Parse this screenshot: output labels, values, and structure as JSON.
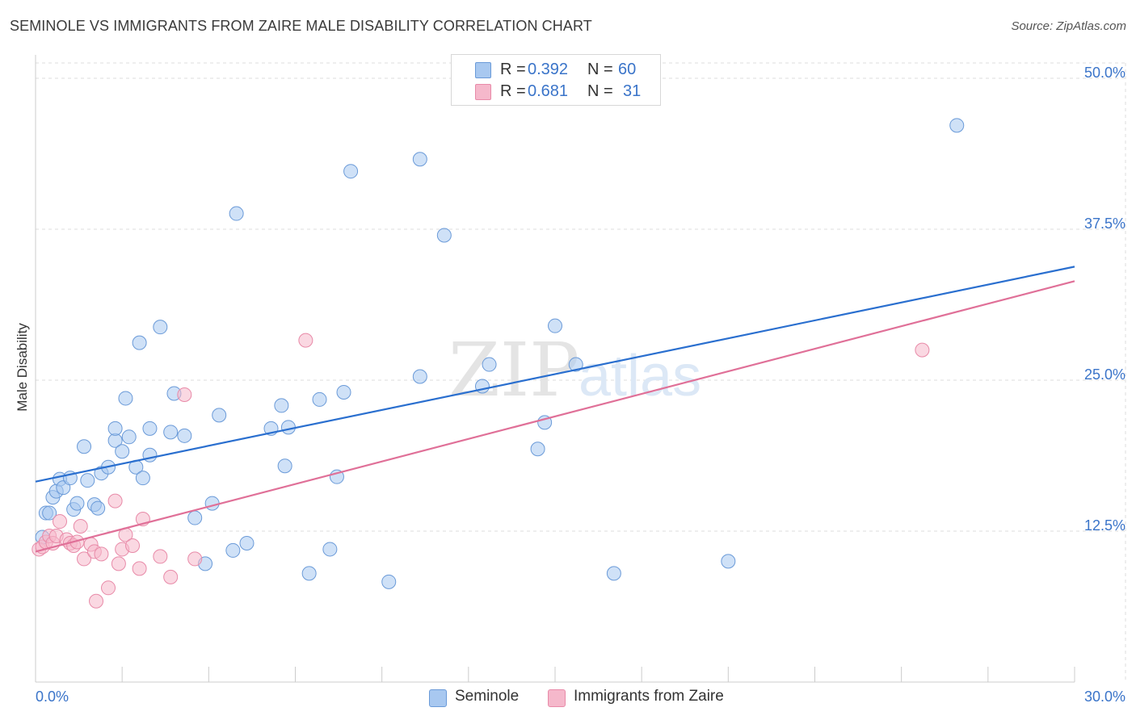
{
  "title": "SEMINOLE VS IMMIGRANTS FROM ZAIRE MALE DISABILITY CORRELATION CHART",
  "source": "Source: ZipAtlas.com",
  "watermark": {
    "zip": "ZIP",
    "atlas": "atlas"
  },
  "legend_top": {
    "rows": [
      {
        "r_label": "R =",
        "r_value": "0.392",
        "n_label": "N =",
        "n_value": "60"
      },
      {
        "r_label": "R =",
        "r_value": "0.681",
        "n_label": "N =",
        "n_value": "31"
      }
    ]
  },
  "colors": {
    "seminole_fill": "#a8c8f0",
    "seminole_stroke": "#6a9ad8",
    "seminole_line": "#2a6fcf",
    "zaire_fill": "#f5b8cb",
    "zaire_stroke": "#e88aa8",
    "zaire_line": "#e07098",
    "axis_label": "#3a74c9",
    "grid": "#dddddd"
  },
  "chart_data": {
    "type": "scatter",
    "title": "SEMINOLE VS IMMIGRANTS FROM ZAIRE MALE DISABILITY CORRELATION CHART",
    "xlabel": "",
    "ylabel": "Male Disability",
    "xlim": [
      0,
      30
    ],
    "ylim": [
      0,
      52
    ],
    "x_tick_labels": [
      {
        "value": 0,
        "label": "0.0%"
      },
      {
        "value": 30,
        "label": "30.0%"
      }
    ],
    "y_tick_labels": [
      {
        "value": 12.5,
        "label": "12.5%"
      },
      {
        "value": 25,
        "label": "25.0%"
      },
      {
        "value": 37.5,
        "label": "37.5%"
      },
      {
        "value": 50,
        "label": "50.0%"
      }
    ],
    "series": [
      {
        "name": "Seminole",
        "R": 0.392,
        "N": 60,
        "trend": {
          "x": [
            0,
            30
          ],
          "y": [
            16.6,
            34.4
          ]
        },
        "points": [
          [
            0.2,
            12.0
          ],
          [
            0.3,
            14.0
          ],
          [
            0.4,
            14.0
          ],
          [
            0.5,
            15.3
          ],
          [
            0.6,
            15.8
          ],
          [
            0.7,
            16.8
          ],
          [
            0.8,
            16.1
          ],
          [
            1.0,
            16.9
          ],
          [
            1.1,
            14.3
          ],
          [
            1.2,
            14.8
          ],
          [
            1.4,
            19.5
          ],
          [
            1.5,
            16.7
          ],
          [
            1.7,
            14.7
          ],
          [
            1.8,
            14.4
          ],
          [
            1.9,
            17.3
          ],
          [
            2.1,
            17.8
          ],
          [
            2.3,
            20.0
          ],
          [
            2.3,
            21.0
          ],
          [
            2.5,
            19.1
          ],
          [
            2.6,
            23.5
          ],
          [
            2.7,
            20.3
          ],
          [
            2.9,
            17.8
          ],
          [
            3.0,
            28.1
          ],
          [
            3.1,
            16.9
          ],
          [
            3.3,
            21.0
          ],
          [
            3.3,
            18.8
          ],
          [
            3.6,
            29.4
          ],
          [
            3.9,
            20.7
          ],
          [
            4.0,
            23.9
          ],
          [
            4.3,
            20.4
          ],
          [
            4.6,
            13.6
          ],
          [
            4.9,
            9.8
          ],
          [
            5.1,
            14.8
          ],
          [
            5.3,
            22.1
          ],
          [
            5.7,
            10.9
          ],
          [
            5.8,
            38.8
          ],
          [
            6.1,
            11.5
          ],
          [
            6.8,
            21.0
          ],
          [
            7.1,
            22.9
          ],
          [
            7.2,
            17.9
          ],
          [
            7.3,
            21.1
          ],
          [
            7.9,
            9.0
          ],
          [
            8.2,
            23.4
          ],
          [
            8.5,
            11.0
          ],
          [
            8.7,
            17.0
          ],
          [
            8.9,
            24.0
          ],
          [
            9.1,
            42.3
          ],
          [
            10.2,
            8.3
          ],
          [
            11.1,
            25.3
          ],
          [
            11.1,
            43.3
          ],
          [
            11.8,
            37.0
          ],
          [
            12.9,
            24.5
          ],
          [
            13.1,
            26.3
          ],
          [
            14.5,
            19.3
          ],
          [
            14.7,
            21.5
          ],
          [
            15.0,
            29.5
          ],
          [
            15.6,
            26.3
          ],
          [
            16.7,
            9.0
          ],
          [
            20.0,
            10.0
          ],
          [
            26.6,
            46.1
          ]
        ]
      },
      {
        "name": "Immigrants from Zaire",
        "R": 0.681,
        "N": 31,
        "trend": {
          "x": [
            0,
            30
          ],
          "y": [
            10.8,
            33.2
          ]
        },
        "points": [
          [
            0.1,
            11.0
          ],
          [
            0.2,
            11.2
          ],
          [
            0.3,
            11.6
          ],
          [
            0.4,
            12.1
          ],
          [
            0.5,
            11.5
          ],
          [
            0.6,
            12.1
          ],
          [
            0.7,
            13.3
          ],
          [
            0.9,
            11.8
          ],
          [
            1.0,
            11.5
          ],
          [
            1.1,
            11.3
          ],
          [
            1.2,
            11.6
          ],
          [
            1.3,
            12.9
          ],
          [
            1.4,
            10.2
          ],
          [
            1.6,
            11.4
          ],
          [
            1.7,
            10.8
          ],
          [
            1.75,
            6.7
          ],
          [
            1.9,
            10.6
          ],
          [
            2.1,
            7.8
          ],
          [
            2.3,
            15.0
          ],
          [
            2.4,
            9.8
          ],
          [
            2.5,
            11.0
          ],
          [
            2.6,
            12.2
          ],
          [
            2.8,
            11.3
          ],
          [
            3.0,
            9.4
          ],
          [
            3.1,
            13.5
          ],
          [
            3.6,
            10.4
          ],
          [
            3.9,
            8.7
          ],
          [
            4.3,
            23.8
          ],
          [
            4.6,
            10.2
          ],
          [
            7.8,
            28.3
          ],
          [
            25.6,
            27.5
          ]
        ]
      }
    ]
  },
  "legend_bottom": {
    "items": [
      "Seminole",
      "Immigrants from Zaire"
    ]
  }
}
